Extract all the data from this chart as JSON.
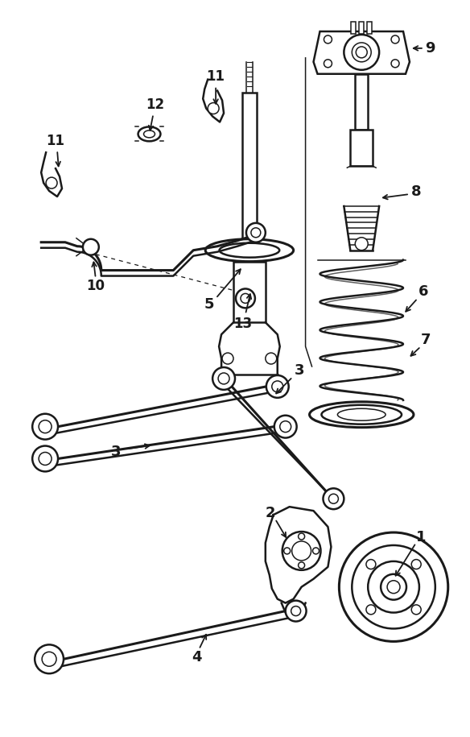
{
  "bg_color": "#ffffff",
  "line_color": "#1a1a1a",
  "label_color": "#000000",
  "figsize": [
    5.84,
    9.15
  ],
  "dpi": 100
}
